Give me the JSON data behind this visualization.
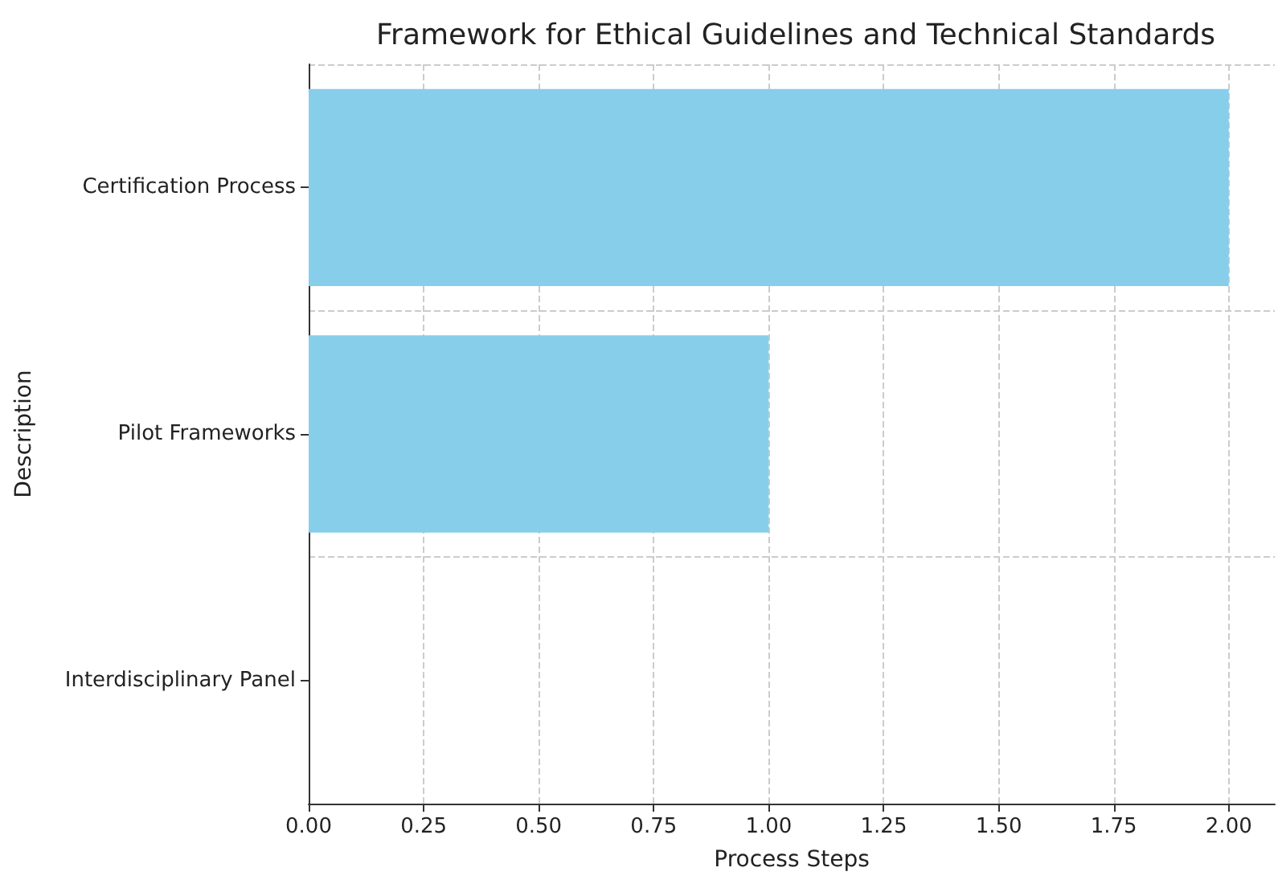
{
  "chart_data": {
    "type": "bar",
    "orientation": "horizontal",
    "title": "Framework for Ethical Guidelines and Technical Standards",
    "xlabel": "Process Steps",
    "ylabel": "Description",
    "categories": [
      "Certification Process",
      "Pilot Frameworks",
      "Interdisciplinary Panel"
    ],
    "values": [
      2,
      1,
      0
    ],
    "color": "#87ceeb",
    "xlim": [
      0,
      2.1
    ],
    "xticks": [
      {
        "value": 0,
        "label": "0.00"
      },
      {
        "value": 0.25,
        "label": "0.25"
      },
      {
        "value": 0.5,
        "label": "0.50"
      },
      {
        "value": 0.75,
        "label": "0.75"
      },
      {
        "value": 1,
        "label": "1.00"
      },
      {
        "value": 1.25,
        "label": "1.25"
      },
      {
        "value": 1.5,
        "label": "1.50"
      },
      {
        "value": 1.75,
        "label": "1.75"
      },
      {
        "value": 2,
        "label": "2.00"
      }
    ],
    "grid": true
  }
}
